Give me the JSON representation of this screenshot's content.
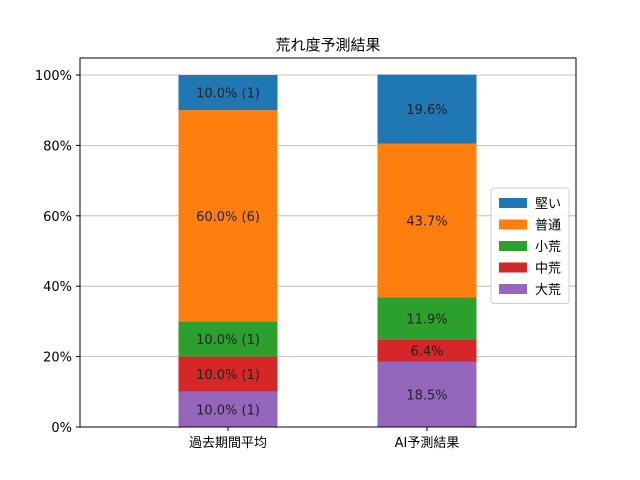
{
  "chart_data": {
    "type": "bar",
    "stacked": true,
    "title": "荒れ度予測結果",
    "xlabel": "",
    "ylabel": "",
    "categories": [
      "過去期間平均",
      "AI予測結果"
    ],
    "ylim": [
      0,
      100
    ],
    "yticks": [
      "0%",
      "20%",
      "40%",
      "60%",
      "80%",
      "100%"
    ],
    "grid": "horizontal",
    "legend_position": "right",
    "series": [
      {
        "name": "大荒",
        "color": "#9467bd",
        "values": [
          10.0,
          18.5
        ],
        "labels": [
          "10.0% (1)",
          "18.5%"
        ]
      },
      {
        "name": "中荒",
        "color": "#d62728",
        "values": [
          10.0,
          6.4
        ],
        "labels": [
          "10.0% (1)",
          "6.4%"
        ]
      },
      {
        "name": "小荒",
        "color": "#2ca02c",
        "values": [
          10.0,
          11.9
        ],
        "labels": [
          "10.0% (1)",
          "11.9%"
        ]
      },
      {
        "name": "普通",
        "color": "#ff7f0e",
        "values": [
          60.0,
          43.7
        ],
        "labels": [
          "60.0% (6)",
          "43.7%"
        ]
      },
      {
        "name": "堅い",
        "color": "#1f77b4",
        "values": [
          10.0,
          19.6
        ],
        "labels": [
          "10.0% (1)",
          "19.6%"
        ]
      }
    ],
    "legend_order": [
      "堅い",
      "普通",
      "小荒",
      "中荒",
      "大荒"
    ]
  }
}
